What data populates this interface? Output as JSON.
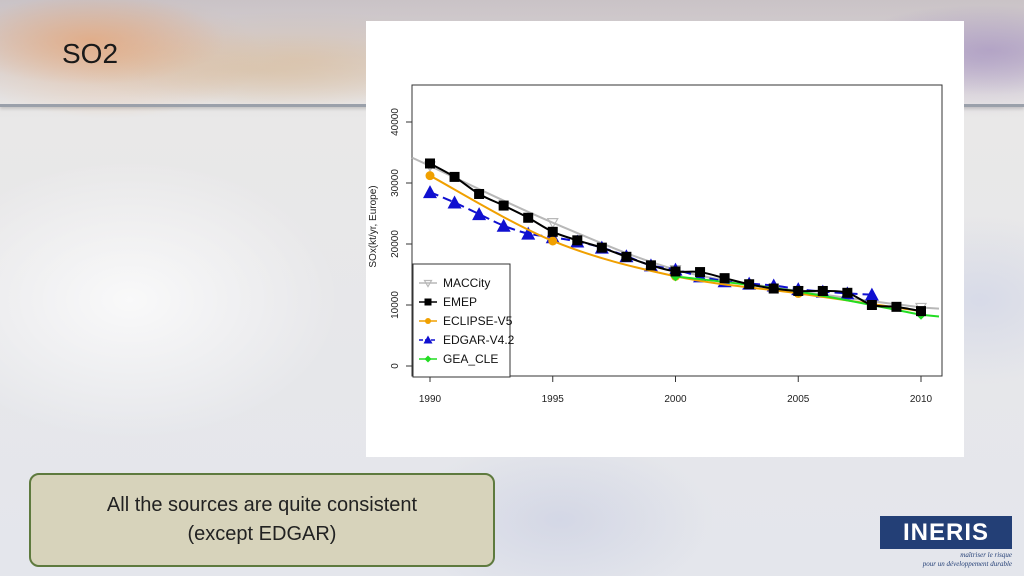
{
  "slide": {
    "title": "SO2",
    "note": "All the sources are quite consistent\n(except EDGAR)"
  },
  "logo": {
    "name": "INERIS",
    "tagline": "maîtriser le risque\npour un développement durable",
    "color": "#233f76"
  },
  "chart_data": {
    "type": "line",
    "title": "",
    "xlabel": "",
    "ylabel": "SOx(kt/yr, Europe)",
    "xlim": [
      1990,
      2010
    ],
    "ylim": [
      0,
      40000
    ],
    "xticks": [
      "1990",
      "1995",
      "2000",
      "2005",
      "2010"
    ],
    "yticks": [
      "0",
      "10000",
      "20000",
      "30000",
      "40000"
    ],
    "legend_position": "bottom-left",
    "series": [
      {
        "name": "MACCity",
        "color": "#b8b8b8",
        "marker": "triangle-down-open",
        "dash": false,
        "x": [
          1990,
          1995,
          2000,
          2005,
          2010
        ],
        "y": [
          32800,
          23500,
          15800,
          12300,
          9600
        ]
      },
      {
        "name": "EMEP",
        "color": "#000000",
        "marker": "square",
        "dash": false,
        "x": [
          1990,
          1991,
          1992,
          1993,
          1994,
          1995,
          1996,
          1997,
          1998,
          1999,
          2000,
          2001,
          2002,
          2003,
          2004,
          2005,
          2006,
          2007,
          2008,
          2009,
          2010
        ],
        "y": [
          33200,
          31000,
          28200,
          26300,
          24300,
          22000,
          20600,
          19400,
          17900,
          16500,
          15500,
          15400,
          14400,
          13400,
          12700,
          12300,
          12300,
          12000,
          10000,
          9700,
          9000
        ]
      },
      {
        "name": "ECLIPSE-V5",
        "color": "#f0a000",
        "marker": "circle",
        "dash": false,
        "x": [
          1990,
          1995,
          2000,
          2005,
          2010
        ],
        "y": [
          31200,
          20500,
          14700,
          11900,
          9000
        ]
      },
      {
        "name": "EDGAR-V4.2",
        "color": "#1010d0",
        "marker": "triangle",
        "dash": true,
        "x": [
          1990,
          1991,
          1992,
          1993,
          1994,
          1995,
          1996,
          1997,
          1998,
          1999,
          2000,
          2001,
          2002,
          2003,
          2004,
          2005,
          2006,
          2007,
          2008
        ],
        "y": [
          28500,
          26800,
          24900,
          23000,
          21700,
          21100,
          20400,
          19400,
          18000,
          16500,
          15800,
          14700,
          13900,
          13500,
          13200,
          12600,
          12200,
          11900,
          11700
        ]
      },
      {
        "name": "GEA_CLE",
        "color": "#22dd22",
        "marker": "diamond",
        "dash": false,
        "x": [
          2000,
          2005,
          2010
        ],
        "y": [
          14700,
          12200,
          8400
        ]
      }
    ]
  }
}
